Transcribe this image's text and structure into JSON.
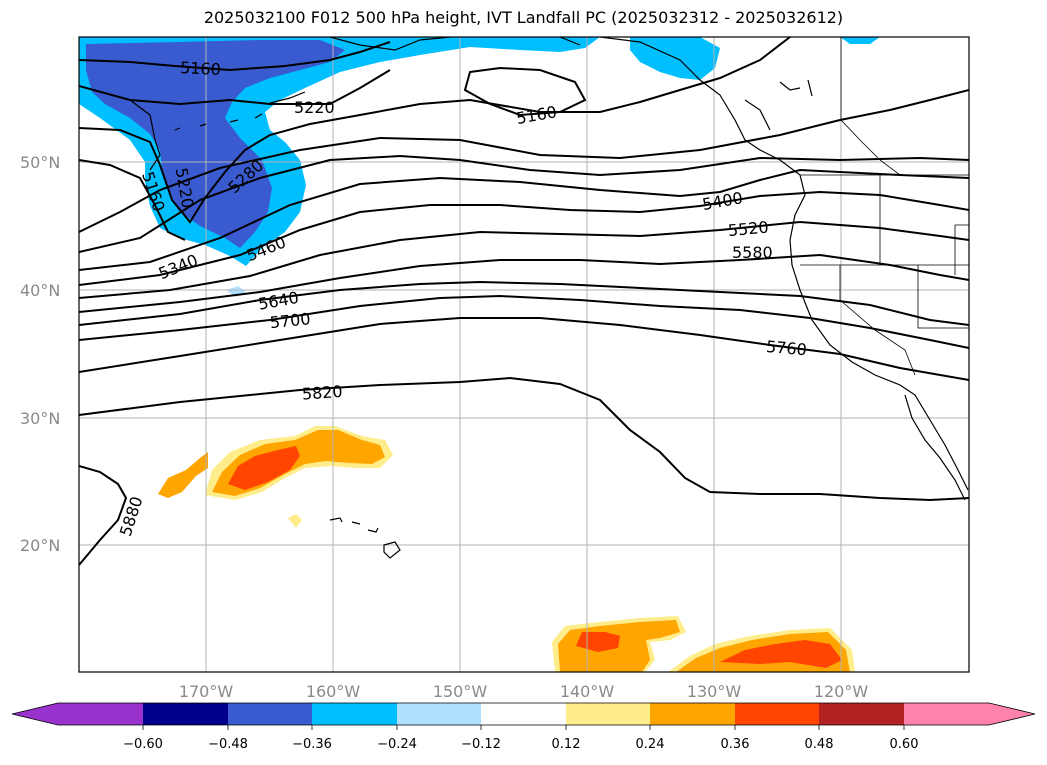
{
  "title": "2025032100 F012 500 hPa height, IVT Landfall PC (2025032312 - 2025032612)",
  "lat_ticks": [
    "50°N",
    "40°N",
    "30°N",
    "20°N"
  ],
  "lon_ticks": [
    "170°W",
    "160°W",
    "150°W",
    "140°W",
    "130°W",
    "120°W"
  ],
  "contour_labels": [
    "5160",
    "5220",
    "5160",
    "5160",
    "5220",
    "5280",
    "5340",
    "5460",
    "5400",
    "5520",
    "5580",
    "5640",
    "5700",
    "5760",
    "5820",
    "5880"
  ],
  "colorbar": {
    "tick_labels": [
      "−0.60",
      "−0.48",
      "−0.36",
      "−0.24",
      "−0.12",
      "0.12",
      "0.24",
      "0.36",
      "0.48",
      "0.60"
    ],
    "colors": [
      "#9a32cd",
      "#00008b",
      "#3a5bd0",
      "#00bfff",
      "#b0e2ff",
      "#ffffff",
      "#ffec8b",
      "#ffa500",
      "#ff4500",
      "#b22222",
      "#ff82ab"
    ]
  },
  "colors": {
    "frame": "#000000",
    "grid": "#b3b3b3",
    "contour": "#000000",
    "neg_dark": "#3a5bd0",
    "neg_mid": "#00bfff",
    "neg_light": "#b0e2ff",
    "pos_light": "#ffec8b",
    "pos_mid": "#ffa500",
    "pos_dark": "#ff4500"
  }
}
